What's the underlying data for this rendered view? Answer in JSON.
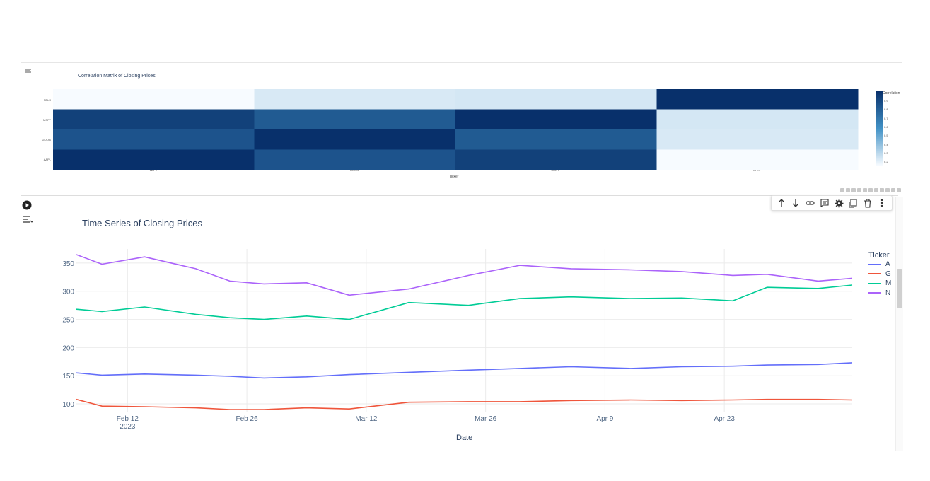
{
  "heatmap": {
    "title": "Correlation Matrix of Closing Prices",
    "x_label": "Ticker",
    "colorbar_title": "Correlation",
    "colorbar_ticks": [
      "0.9",
      "0.8",
      "0.7",
      "0.6",
      "0.5",
      "0.4",
      "0.3",
      "0.2"
    ]
  },
  "timeseries": {
    "title": "Time Series of Closing Prices",
    "x_label": "Date",
    "legend_title": "Ticker",
    "legend_items": [
      "A",
      "G",
      "M",
      "N"
    ],
    "x_ticks": [
      {
        "label": "Feb 12",
        "sub": "2023"
      },
      {
        "label": "Feb 26",
        "sub": ""
      },
      {
        "label": "Mar 12",
        "sub": ""
      },
      {
        "label": "Mar 26",
        "sub": ""
      },
      {
        "label": "Apr 9",
        "sub": ""
      },
      {
        "label": "Apr 23",
        "sub": ""
      }
    ],
    "y_ticks": [
      "350",
      "300",
      "250",
      "200",
      "150",
      "100"
    ]
  },
  "toolbar": {
    "icons": [
      "arrow-up-icon",
      "arrow-down-icon",
      "link-icon",
      "comment-icon",
      "gear-icon",
      "copy-icon",
      "trash-icon",
      "more-vertical-icon"
    ]
  },
  "chart_data": [
    {
      "type": "heatmap",
      "title": "Correlation Matrix of Closing Prices",
      "xlabel": "Ticker",
      "x": [
        "AAPL",
        "GOOG",
        "MSFT",
        "NFLX"
      ],
      "y": [
        "AAPL",
        "GOOG",
        "MSFT",
        "NFLX"
      ],
      "z": [
        [
          1.0,
          0.85,
          0.93,
          0.17
        ],
        [
          0.85,
          1.0,
          0.82,
          0.24
        ],
        [
          0.93,
          0.82,
          1.0,
          0.25
        ],
        [
          0.17,
          0.24,
          0.25,
          1.0
        ]
      ],
      "colorscale": "Blues",
      "colorbar_title": "Correlation",
      "zlim": [
        0.17,
        1.0
      ]
    },
    {
      "type": "line",
      "title": "Time Series of Closing Prices",
      "xlabel": "Date",
      "ylabel": "",
      "legend_title": "Ticker",
      "ylim": [
        85,
        375
      ],
      "xlim": [
        "2023-02-06",
        "2023-05-08"
      ],
      "series": [
        {
          "name": "A",
          "color": "#636efa",
          "points": [
            [
              "2023-02-06",
              155
            ],
            [
              "2023-02-09",
              151
            ],
            [
              "2023-02-14",
              153
            ],
            [
              "2023-02-20",
              151
            ],
            [
              "2023-02-24",
              149
            ],
            [
              "2023-02-28",
              146
            ],
            [
              "2023-03-05",
              148
            ],
            [
              "2023-03-10",
              152
            ],
            [
              "2023-03-17",
              156
            ],
            [
              "2023-03-24",
              160
            ],
            [
              "2023-03-30",
              163
            ],
            [
              "2023-04-05",
              166
            ],
            [
              "2023-04-12",
              163
            ],
            [
              "2023-04-18",
              166
            ],
            [
              "2023-04-24",
              167
            ],
            [
              "2023-04-28",
              169
            ],
            [
              "2023-05-04",
              170
            ],
            [
              "2023-05-08",
              173
            ]
          ]
        },
        {
          "name": "G",
          "color": "#ef553b",
          "points": [
            [
              "2023-02-06",
              108
            ],
            [
              "2023-02-09",
              96
            ],
            [
              "2023-02-14",
              95
            ],
            [
              "2023-02-20",
              93
            ],
            [
              "2023-02-24",
              90
            ],
            [
              "2023-02-28",
              90
            ],
            [
              "2023-03-05",
              93
            ],
            [
              "2023-03-10",
              91
            ],
            [
              "2023-03-17",
              103
            ],
            [
              "2023-03-24",
              104
            ],
            [
              "2023-03-30",
              104
            ],
            [
              "2023-04-05",
              106
            ],
            [
              "2023-04-12",
              107
            ],
            [
              "2023-04-18",
              106
            ],
            [
              "2023-04-24",
              107
            ],
            [
              "2023-04-28",
              108
            ],
            [
              "2023-05-04",
              108
            ],
            [
              "2023-05-08",
              107
            ]
          ]
        },
        {
          "name": "M",
          "color": "#00cc96",
          "points": [
            [
              "2023-02-06",
              268
            ],
            [
              "2023-02-09",
              264
            ],
            [
              "2023-02-14",
              272
            ],
            [
              "2023-02-20",
              259
            ],
            [
              "2023-02-24",
              253
            ],
            [
              "2023-02-28",
              250
            ],
            [
              "2023-03-05",
              256
            ],
            [
              "2023-03-10",
              250
            ],
            [
              "2023-03-17",
              280
            ],
            [
              "2023-03-24",
              275
            ],
            [
              "2023-03-30",
              287
            ],
            [
              "2023-04-05",
              290
            ],
            [
              "2023-04-12",
              287
            ],
            [
              "2023-04-18",
              288
            ],
            [
              "2023-04-24",
              283
            ],
            [
              "2023-04-28",
              307
            ],
            [
              "2023-05-04",
              305
            ],
            [
              "2023-05-08",
              311
            ]
          ]
        },
        {
          "name": "N",
          "color": "#ab63fa",
          "points": [
            [
              "2023-02-06",
              365
            ],
            [
              "2023-02-09",
              348
            ],
            [
              "2023-02-14",
              361
            ],
            [
              "2023-02-20",
              340
            ],
            [
              "2023-02-24",
              318
            ],
            [
              "2023-02-28",
              313
            ],
            [
              "2023-03-05",
              315
            ],
            [
              "2023-03-10",
              293
            ],
            [
              "2023-03-17",
              304
            ],
            [
              "2023-03-24",
              328
            ],
            [
              "2023-03-30",
              346
            ],
            [
              "2023-04-05",
              340
            ],
            [
              "2023-04-12",
              338
            ],
            [
              "2023-04-18",
              335
            ],
            [
              "2023-04-24",
              328
            ],
            [
              "2023-04-28",
              330
            ],
            [
              "2023-05-04",
              318
            ],
            [
              "2023-05-08",
              323
            ]
          ]
        }
      ]
    }
  ]
}
